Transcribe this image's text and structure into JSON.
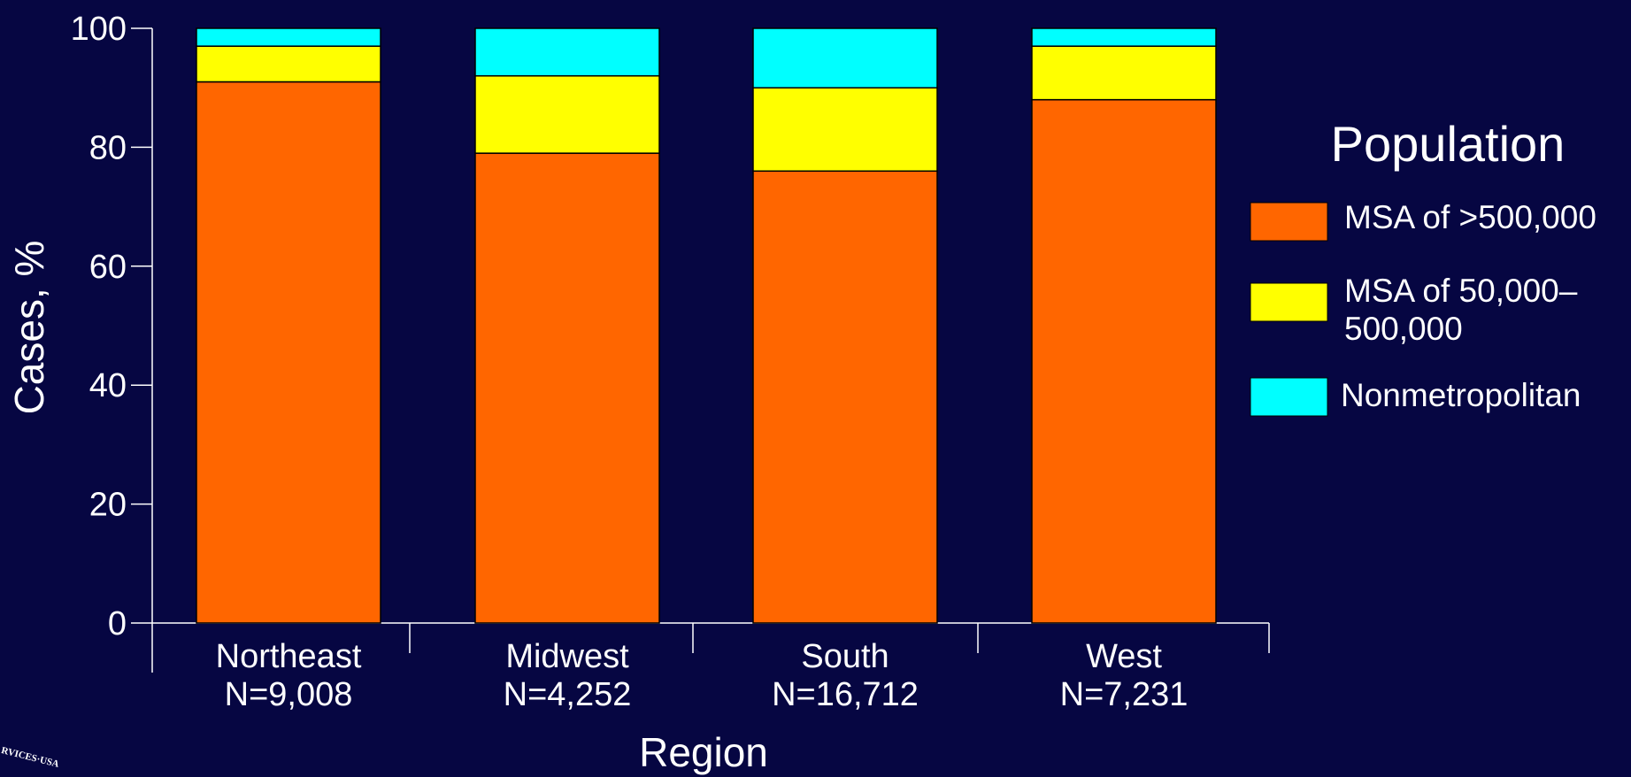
{
  "chart_data": {
    "type": "bar",
    "stacked": true,
    "categories": [
      "Northeast",
      "Midwest",
      "South",
      "West"
    ],
    "category_counts": [
      "N=9,008",
      "N=4,252",
      "N=16,712",
      "N=7,231"
    ],
    "series": [
      {
        "name": "MSA of >500,000",
        "values": [
          91,
          79,
          76,
          88
        ],
        "color": "#ff6600"
      },
      {
        "name": "MSA of 50,000–500,000",
        "values": [
          6,
          13,
          14,
          9
        ],
        "color": "#ffff00"
      },
      {
        "name": "Nonmetropolitan",
        "values": [
          3,
          8,
          10,
          3
        ],
        "color": "#00ffff"
      }
    ],
    "xlabel": "Region",
    "ylabel": "Cases, %",
    "ylim": [
      0,
      100
    ],
    "yticks": [
      0,
      20,
      40,
      60,
      80,
      100
    ],
    "legend_title": "Population",
    "legend_position": "right",
    "legend_labels": [
      "MSA of >500,000",
      "MSA of 50,000–",
      "500,000",
      "Nonmetropolitan"
    ],
    "grid": false
  },
  "seal_text": "RVICES·USA"
}
